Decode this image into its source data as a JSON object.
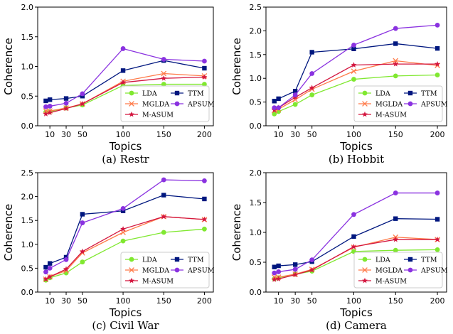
{
  "series_style": {
    "LDA": {
      "color": "#80e830",
      "marker": "circle"
    },
    "MGLDA": {
      "color": "#ff7b4a",
      "marker": "x"
    },
    "M-ASUM": {
      "color": "#d3163f",
      "marker": "star"
    },
    "TTM": {
      "color": "#00177f",
      "marker": "square"
    },
    "APSUM": {
      "color": "#8a32e0",
      "marker": "circle"
    }
  },
  "chart_data": [
    {
      "type": "line",
      "caption": "(a) Restr",
      "xlabel": "Topics",
      "ylabel": "Coherence",
      "x": [
        5,
        10,
        30,
        50,
        100,
        150,
        200
      ],
      "xticks": [
        10,
        30,
        50,
        100,
        150,
        200
      ],
      "ylim": [
        0,
        2.0
      ],
      "yticks": [
        "0.0",
        "0.5",
        "1.0",
        "1.5",
        "2.0"
      ],
      "legend_position": "lower-right",
      "series": [
        {
          "name": "LDA",
          "values": [
            0.23,
            0.24,
            0.3,
            0.35,
            0.68,
            0.7,
            0.7
          ]
        },
        {
          "name": "MGLDA",
          "values": [
            0.25,
            0.25,
            0.3,
            0.37,
            0.75,
            0.88,
            0.84
          ]
        },
        {
          "name": "M-ASUM",
          "values": [
            0.2,
            0.22,
            0.29,
            0.37,
            0.73,
            0.8,
            0.82
          ]
        },
        {
          "name": "TTM",
          "values": [
            0.42,
            0.44,
            0.46,
            0.5,
            0.93,
            1.1,
            0.97
          ]
        },
        {
          "name": "APSUM",
          "values": [
            0.32,
            0.33,
            0.38,
            0.54,
            1.3,
            1.12,
            1.09
          ]
        }
      ]
    },
    {
      "type": "line",
      "caption": "(b) Hobbit",
      "xlabel": "Topics",
      "ylabel": "Coherence",
      "x": [
        5,
        10,
        30,
        50,
        100,
        150,
        200
      ],
      "xticks": [
        10,
        30,
        50,
        100,
        150,
        200
      ],
      "ylim": [
        0,
        2.5
      ],
      "yticks": [
        "0.0",
        "0.5",
        "1.0",
        "1.5",
        "2.0",
        "2.5"
      ],
      "legend_position": "lower-right",
      "series": [
        {
          "name": "LDA",
          "values": [
            0.25,
            0.3,
            0.45,
            0.65,
            0.98,
            1.05,
            1.07
          ]
        },
        {
          "name": "MGLDA",
          "values": [
            0.32,
            0.35,
            0.55,
            0.77,
            1.15,
            1.37,
            1.27
          ]
        },
        {
          "name": "M-ASUM",
          "values": [
            0.33,
            0.38,
            0.6,
            0.8,
            1.28,
            1.3,
            1.3
          ]
        },
        {
          "name": "TTM",
          "values": [
            0.52,
            0.57,
            0.73,
            1.55,
            1.62,
            1.73,
            1.63
          ]
        },
        {
          "name": "APSUM",
          "values": [
            0.38,
            0.38,
            0.65,
            1.1,
            1.7,
            2.05,
            2.12
          ]
        }
      ]
    },
    {
      "type": "line",
      "caption": "(c) Civil War",
      "xlabel": "Topics",
      "ylabel": "Coherence",
      "x": [
        5,
        10,
        30,
        50,
        100,
        150,
        200
      ],
      "xticks": [
        10,
        30,
        50,
        100,
        150,
        200
      ],
      "ylim": [
        0,
        2.5
      ],
      "yticks": [
        "0.0",
        "0.5",
        "1.0",
        "1.5",
        "2.0",
        "2.5"
      ],
      "legend_position": "lower-right",
      "series": [
        {
          "name": "LDA",
          "values": [
            0.25,
            0.3,
            0.4,
            0.63,
            1.07,
            1.25,
            1.32
          ]
        },
        {
          "name": "MGLDA",
          "values": [
            0.27,
            0.32,
            0.45,
            0.82,
            1.25,
            1.58,
            1.52
          ]
        },
        {
          "name": "M-ASUM",
          "values": [
            0.27,
            0.32,
            0.48,
            0.85,
            1.32,
            1.58,
            1.52
          ]
        },
        {
          "name": "TTM",
          "values": [
            0.52,
            0.6,
            0.73,
            1.63,
            1.7,
            2.03,
            1.95
          ]
        },
        {
          "name": "APSUM",
          "values": [
            0.42,
            0.5,
            0.68,
            1.45,
            1.75,
            2.35,
            2.33
          ]
        }
      ]
    },
    {
      "type": "line",
      "caption": "(d) Camera",
      "xlabel": "Topics",
      "ylabel": "Coherence",
      "x": [
        5,
        10,
        30,
        50,
        100,
        150,
        200
      ],
      "xticks": [
        10,
        30,
        50,
        100,
        150,
        200
      ],
      "ylim": [
        0,
        2.0
      ],
      "yticks": [
        "0.0",
        "0.5",
        "1.0",
        "1.5",
        "2.0"
      ],
      "legend_position": "lower-right",
      "series": [
        {
          "name": "LDA",
          "values": [
            0.22,
            0.24,
            0.3,
            0.35,
            0.68,
            0.7,
            0.71
          ]
        },
        {
          "name": "MGLDA",
          "values": [
            0.25,
            0.25,
            0.3,
            0.38,
            0.75,
            0.92,
            0.88
          ]
        },
        {
          "name": "M-ASUM",
          "values": [
            0.21,
            0.22,
            0.29,
            0.37,
            0.76,
            0.88,
            0.88
          ]
        },
        {
          "name": "TTM",
          "values": [
            0.42,
            0.44,
            0.46,
            0.51,
            0.93,
            1.23,
            1.22
          ]
        },
        {
          "name": "APSUM",
          "values": [
            0.32,
            0.34,
            0.38,
            0.54,
            1.3,
            1.66,
            1.66
          ]
        }
      ]
    }
  ]
}
